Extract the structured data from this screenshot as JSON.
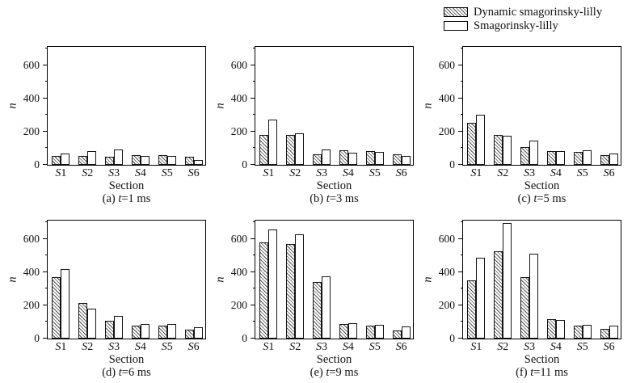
{
  "figure": {
    "background": "#ffffff",
    "legend": {
      "items": [
        {
          "label": "Dynamic smagorinsky-lilly",
          "swatch": "hatched"
        },
        {
          "label": "Smagorinsky-lilly",
          "swatch": "white"
        }
      ]
    }
  },
  "colors": {
    "axis": "#000000",
    "bar_edge": "#141414",
    "hatch_line": "#4f4f4f",
    "bar_fill": "#ffffff"
  },
  "chart_data": [
    {
      "type": "bar",
      "subplot": "a",
      "caption_pre": "(a) ",
      "caption_italic": "t",
      "caption_rest": "=1 ms",
      "xlabel": "Section",
      "ylabel": "n",
      "categories": [
        "S1",
        "S2",
        "S3",
        "S4",
        "S5",
        "S6"
      ],
      "series": [
        {
          "name": "Dynamic smagorinsky-lilly",
          "style": "hatched",
          "values": [
            54,
            56,
            48,
            61,
            60,
            50
          ]
        },
        {
          "name": "Smagorinsky-lilly",
          "style": "white",
          "values": [
            69,
            85,
            91,
            56,
            56,
            30
          ]
        }
      ],
      "ylim": [
        0,
        720
      ],
      "yticks": [
        0,
        200,
        400,
        600
      ],
      "yminor_step": 100,
      "grid": "off",
      "legend_position": "figure-top-right"
    },
    {
      "type": "bar",
      "subplot": "b",
      "caption_pre": "(b) ",
      "caption_italic": "t",
      "caption_rest": "=3 ms",
      "xlabel": "Section",
      "ylabel": "n",
      "categories": [
        "S1",
        "S2",
        "S3",
        "S4",
        "S5",
        "S6"
      ],
      "series": [
        {
          "name": "Dynamic smagorinsky-lilly",
          "style": "hatched",
          "values": [
            180,
            178,
            64,
            88,
            82,
            63
          ]
        },
        {
          "name": "Smagorinsky-lilly",
          "style": "white",
          "values": [
            275,
            188,
            92,
            74,
            78,
            54
          ]
        }
      ],
      "ylim": [
        0,
        720
      ],
      "yticks": [
        0,
        200,
        400,
        600
      ],
      "yminor_step": 100,
      "grid": "off",
      "legend_position": "figure-top-right"
    },
    {
      "type": "bar",
      "subplot": "c",
      "caption_pre": "(c) ",
      "caption_italic": "t",
      "caption_rest": "=5 ms",
      "xlabel": "Section",
      "ylabel": "n",
      "categories": [
        "S1",
        "S2",
        "S3",
        "S4",
        "S5",
        "S6"
      ],
      "series": [
        {
          "name": "Dynamic smagorinsky-lilly",
          "style": "hatched",
          "values": [
            255,
            180,
            105,
            85,
            78,
            57
          ]
        },
        {
          "name": "Smagorinsky-lilly",
          "style": "white",
          "values": [
            300,
            176,
            145,
            84,
            86,
            67
          ]
        }
      ],
      "ylim": [
        0,
        720
      ],
      "yticks": [
        0,
        200,
        400,
        600
      ],
      "yminor_step": 100,
      "grid": "off",
      "legend_position": "figure-top-right"
    },
    {
      "type": "bar",
      "subplot": "d",
      "caption_pre": "(d) ",
      "caption_italic": "t",
      "caption_rest": "=6 ms",
      "xlabel": "Section",
      "ylabel": "n",
      "categories": [
        "S1",
        "S2",
        "S3",
        "S4",
        "S5",
        "S6"
      ],
      "series": [
        {
          "name": "Dynamic smagorinsky-lilly",
          "style": "hatched",
          "values": [
            372,
            212,
            108,
            80,
            76,
            53
          ]
        },
        {
          "name": "Smagorinsky-lilly",
          "style": "white",
          "values": [
            418,
            182,
            138,
            86,
            86,
            66
          ]
        }
      ],
      "ylim": [
        0,
        720
      ],
      "yticks": [
        0,
        200,
        400,
        600
      ],
      "yminor_step": 100,
      "grid": "off",
      "legend_position": "figure-top-right"
    },
    {
      "type": "bar",
      "subplot": "e",
      "caption_pre": "(e) ",
      "caption_italic": "t",
      "caption_rest": "=9 ms",
      "xlabel": "Section",
      "ylabel": "n",
      "categories": [
        "S1",
        "S2",
        "S3",
        "S4",
        "S5",
        "S6"
      ],
      "series": [
        {
          "name": "Dynamic smagorinsky-lilly",
          "style": "hatched",
          "values": [
            580,
            570,
            340,
            90,
            76,
            50
          ]
        },
        {
          "name": "Smagorinsky-lilly",
          "style": "white",
          "values": [
            655,
            630,
            375,
            92,
            85,
            72
          ]
        }
      ],
      "ylim": [
        0,
        720
      ],
      "yticks": [
        0,
        200,
        400,
        600
      ],
      "yminor_step": 100,
      "grid": "off",
      "legend_position": "figure-top-right"
    },
    {
      "type": "bar",
      "subplot": "f",
      "caption_pre": "(f) ",
      "caption_italic": "t",
      "caption_rest": "=11 ms",
      "xlabel": "Section",
      "ylabel": "n",
      "categories": [
        "S1",
        "S2",
        "S3",
        "S4",
        "S5",
        "S6"
      ],
      "series": [
        {
          "name": "Dynamic smagorinsky-lilly",
          "style": "hatched",
          "values": [
            352,
            525,
            368,
            115,
            78,
            58
          ]
        },
        {
          "name": "Smagorinsky-lilly",
          "style": "white",
          "values": [
            485,
            695,
            510,
            110,
            84,
            80
          ]
        }
      ],
      "ylim": [
        0,
        720
      ],
      "yticks": [
        0,
        200,
        400,
        600
      ],
      "yminor_step": 100,
      "grid": "off",
      "legend_position": "figure-top-right"
    }
  ]
}
